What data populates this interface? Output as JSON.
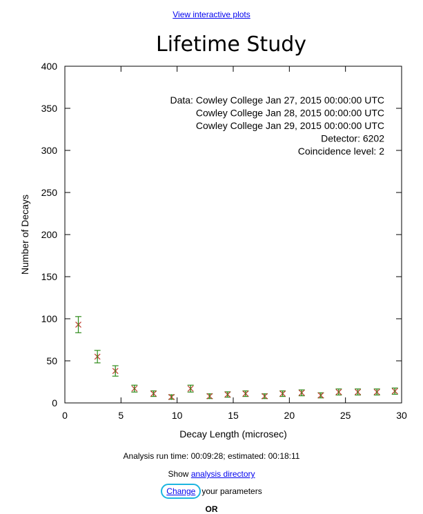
{
  "top_link": "View interactive plots",
  "chart_data": {
    "type": "scatter",
    "title": "Lifetime Study",
    "xlabel": "Decay Length (microsec)",
    "ylabel": "Number of Decays",
    "xlim": [
      0,
      30
    ],
    "ylim": [
      0,
      400
    ],
    "xticks": [
      0,
      5,
      10,
      15,
      20,
      25,
      30
    ],
    "yticks": [
      0,
      50,
      100,
      150,
      200,
      250,
      300,
      350,
      400
    ],
    "grid": false,
    "series_color": "#2e8b1a",
    "marker_color": "#c0392b",
    "x": [
      1.2,
      2.9,
      4.5,
      6.2,
      7.9,
      9.5,
      11.2,
      12.9,
      14.5,
      16.1,
      17.8,
      19.4,
      21.1,
      22.8,
      24.4,
      26.1,
      27.8,
      29.4
    ],
    "y": [
      93,
      55,
      38,
      17,
      11,
      7,
      17,
      8,
      10,
      11,
      8,
      11,
      12,
      9,
      13,
      13,
      13,
      14
    ],
    "yerr": [
      9.6,
      7.4,
      6.2,
      4.1,
      3.3,
      2.6,
      4.1,
      2.8,
      3.2,
      3.3,
      2.8,
      3.3,
      3.5,
      3.0,
      3.6,
      3.6,
      3.6,
      3.7
    ],
    "annotation_lines": [
      "Data: Cowley College Jan 27, 2015 00:00:00 UTC",
      "Cowley College Jan 28, 2015 00:00:00 UTC",
      "Cowley College Jan 29, 2015 00:00:00 UTC",
      "Detector: 6202",
      "Coincidence level: 2"
    ]
  },
  "footer": {
    "run_time": "Analysis run time: 00:09:28; estimated: 00:18:11",
    "show_prefix": "Show",
    "analysis_directory_link": "analysis directory",
    "change_link": "Change",
    "change_suffix": "your parameters",
    "or_text": "OR"
  }
}
